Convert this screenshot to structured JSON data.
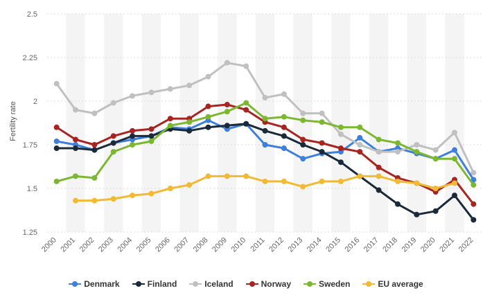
{
  "chart_data": {
    "type": "line",
    "title": "",
    "xlabel": "",
    "ylabel": "Fertility rate",
    "ylim": [
      1.25,
      2.5
    ],
    "yticks": [
      "1.25",
      "1.5",
      "1.75",
      "2",
      "2.25",
      "2.5"
    ],
    "categories": [
      "2000",
      "2001",
      "2002",
      "2003",
      "2004",
      "2005",
      "2006",
      "2007",
      "2008",
      "2009",
      "2010",
      "2011",
      "2012",
      "2013",
      "2014",
      "2015",
      "2016",
      "2017",
      "2018",
      "2019",
      "2020",
      "2021",
      "2022"
    ],
    "series": [
      {
        "name": "Denmark",
        "color": "#3d7fde",
        "values": [
          1.77,
          1.75,
          1.72,
          1.76,
          1.78,
          1.8,
          1.85,
          1.84,
          1.89,
          1.84,
          1.87,
          1.75,
          1.73,
          1.67,
          1.7,
          1.71,
          1.79,
          1.71,
          1.73,
          1.7,
          1.67,
          1.72,
          1.55
        ]
      },
      {
        "name": "Finland",
        "color": "#1b2a3a",
        "values": [
          1.73,
          1.73,
          1.72,
          1.76,
          1.8,
          1.8,
          1.84,
          1.83,
          1.85,
          1.86,
          1.87,
          1.83,
          1.8,
          1.75,
          1.71,
          1.65,
          1.57,
          1.49,
          1.41,
          1.35,
          1.37,
          1.46,
          1.32
        ]
      },
      {
        "name": "Iceland",
        "color": "#c0c0c0",
        "values": [
          2.1,
          1.95,
          1.93,
          1.99,
          2.03,
          2.05,
          2.07,
          2.09,
          2.14,
          2.22,
          2.2,
          2.02,
          2.04,
          1.93,
          1.93,
          1.81,
          1.75,
          1.71,
          1.71,
          1.75,
          1.72,
          1.82,
          1.59
        ]
      },
      {
        "name": "Norway",
        "color": "#a82420",
        "values": [
          1.85,
          1.78,
          1.75,
          1.8,
          1.83,
          1.84,
          1.9,
          1.9,
          1.97,
          1.98,
          1.95,
          1.88,
          1.85,
          1.78,
          1.76,
          1.73,
          1.71,
          1.62,
          1.56,
          1.53,
          1.48,
          1.55,
          1.41
        ]
      },
      {
        "name": "Sweden",
        "color": "#7cb82f",
        "values": [
          1.54,
          1.57,
          1.56,
          1.71,
          1.75,
          1.77,
          1.86,
          1.88,
          1.91,
          1.94,
          1.99,
          1.9,
          1.91,
          1.89,
          1.88,
          1.85,
          1.85,
          1.78,
          1.76,
          1.71,
          1.67,
          1.67,
          1.52
        ]
      },
      {
        "name": "EU average",
        "color": "#f2b933",
        "values": [
          null,
          1.43,
          1.43,
          1.44,
          1.46,
          1.47,
          1.5,
          1.52,
          1.57,
          1.57,
          1.57,
          1.54,
          1.54,
          1.51,
          1.54,
          1.54,
          1.57,
          1.57,
          1.54,
          1.53,
          1.5,
          1.53,
          null
        ]
      }
    ],
    "legend_position": "bottom",
    "grid": true
  }
}
